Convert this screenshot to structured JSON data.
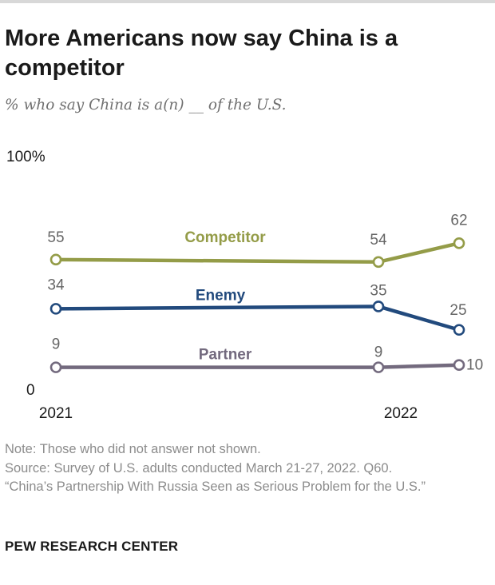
{
  "header": {
    "title": "More Americans now say China is a competitor",
    "subtitle": "% who say China is a(n) __ of the U.S."
  },
  "chart_data": {
    "type": "line",
    "title": "More Americans now say China is a competitor",
    "subtitle": "% who say China is a(n) __ of the U.S.",
    "xlabel": "",
    "ylabel": "",
    "ylim": [
      0,
      100
    ],
    "y_tick_labels": [
      "100%",
      "0"
    ],
    "x_tick_labels": [
      "2021",
      "2022"
    ],
    "grid": false,
    "series": [
      {
        "name": "Competitor",
        "color": "#949c48",
        "points": [
          {
            "t": 0,
            "value": 55
          },
          {
            "t": 0.8,
            "value": 54
          },
          {
            "t": 1,
            "value": 62
          }
        ]
      },
      {
        "name": "Enemy",
        "color": "#224a7d",
        "points": [
          {
            "t": 0,
            "value": 34
          },
          {
            "t": 0.8,
            "value": 35
          },
          {
            "t": 1,
            "value": 25
          }
        ]
      },
      {
        "name": "Partner",
        "color": "#736a7e",
        "points": [
          {
            "t": 0,
            "value": 9
          },
          {
            "t": 0.8,
            "value": 9
          },
          {
            "t": 1,
            "value": 10
          }
        ]
      }
    ]
  },
  "footer": {
    "note": "Note: Those who did not answer not shown.",
    "source_line1": "Source: Survey of U.S. adults conducted March 21-27, 2022. Q60.",
    "source_line2": "“China’s Partnership With Russia Seen as Serious Problem for the U.S.”",
    "brand": "PEW RESEARCH CENTER"
  },
  "colors": {
    "rule": "#d8d8d8",
    "axis_text": "#1a1a1a",
    "value_text": "#666666"
  }
}
